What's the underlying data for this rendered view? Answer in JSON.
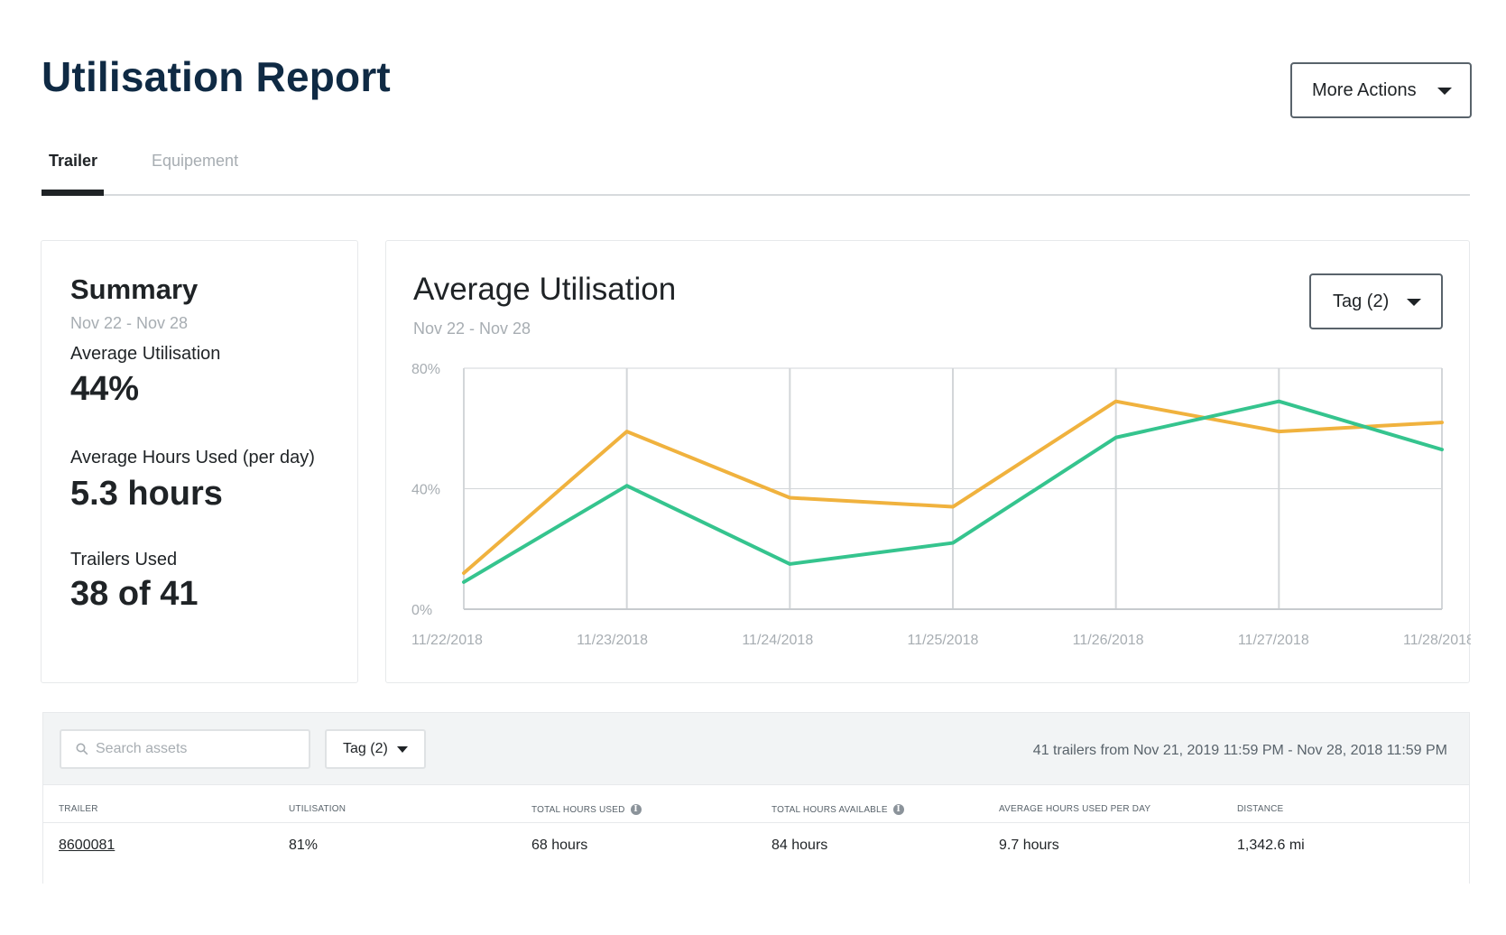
{
  "page": {
    "title": "Utilisation Report"
  },
  "header": {
    "more_actions_label": "More Actions"
  },
  "tabs": [
    {
      "label": "Trailer",
      "active": true
    },
    {
      "label": "Equipement",
      "active": false
    }
  ],
  "summary": {
    "title": "Summary",
    "range": "Nov 22 - Nov 28",
    "metrics": [
      {
        "label": "Average Utilisation",
        "value": "44%"
      },
      {
        "label": "Average Hours Used (per day)",
        "value": "5.3 hours"
      },
      {
        "label": "Trailers Used",
        "value": "38 of 41"
      }
    ]
  },
  "chart_panel": {
    "title": "Average Utilisation",
    "range": "Nov 22 - Nov 28",
    "tag_label": "Tag (2)"
  },
  "chart_data": {
    "type": "line",
    "x": [
      "11/22/2018",
      "11/23/2018",
      "11/24/2018",
      "11/25/2018",
      "11/26/2018",
      "11/27/2018",
      "11/28/2018"
    ],
    "y_ticks": [
      "0%",
      "40%",
      "80%"
    ],
    "ylim": [
      0,
      80
    ],
    "series": [
      {
        "color": "#f0b23e",
        "values": [
          12,
          59,
          37,
          34,
          69,
          59,
          62
        ]
      },
      {
        "color": "#35c48e",
        "values": [
          9,
          41,
          15,
          22,
          57,
          69,
          53
        ]
      }
    ],
    "grid": true
  },
  "table": {
    "search_placeholder": "Search assets",
    "tag_label": "Tag (2)",
    "range_text": "41 trailers from Nov 21, 2019 11:59 PM - Nov 28, 2018 11:59 PM",
    "columns": [
      "Trailer",
      "Utilisation",
      "Total Hours Used",
      "Total Hours Available",
      "Average Hours Used Per Day",
      "Distance"
    ],
    "rows": [
      [
        "8600081",
        "81%",
        "68 hours",
        "84 hours",
        "9.7 hours",
        "1,342.6 mi"
      ]
    ]
  }
}
